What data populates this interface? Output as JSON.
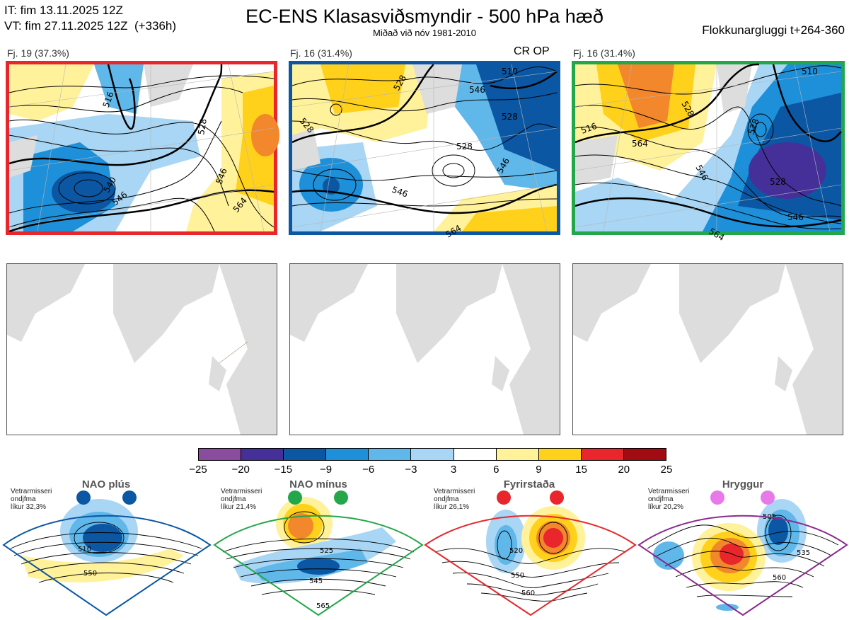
{
  "header": {
    "init_time": "IT: fim 13.11.2025 12Z",
    "valid_time": "VT: fim 27.11.2025 12Z  (+336h)",
    "title": "EC-ENS Klasasviðsmyndir - 500 hPa hæð",
    "subtitle": "Miðað við nóv 1981-2010",
    "window": "Flokkunargluggi t+264-360"
  },
  "clusters": [
    {
      "label": "Fj. 19 (37.3%)",
      "border_color": "#e8262b",
      "tag": "",
      "contour_labels": [
        "516",
        "528",
        "546",
        "546",
        "564",
        "540"
      ]
    },
    {
      "label": "Fj. 16 (31.4%)",
      "border_color": "#0b57a4",
      "tag": "CR OP",
      "contour_labels": [
        "528",
        "510",
        "528",
        "546",
        "528",
        "546",
        "528",
        "564",
        "546"
      ]
    },
    {
      "label": "Fj. 16 (31.4%)",
      "border_color": "#23a74a",
      "tag": "",
      "contour_labels": [
        "510",
        "528",
        "546",
        "528",
        "528",
        "516",
        "564",
        "546",
        "564"
      ]
    }
  ],
  "colorbar": {
    "ticks": [
      "−25",
      "−20",
      "−15",
      "−9",
      "−6",
      "−3",
      "3",
      "6",
      "9",
      "15",
      "20",
      "25"
    ],
    "colors": [
      "#8a4c9e",
      "#45309a",
      "#0b57a4",
      "#1e8fd9",
      "#5fb7ea",
      "#a8d6f4",
      "#ffffff",
      "#fff29a",
      "#ffd11a",
      "#f2872c",
      "#e8262b",
      "#a00c12"
    ]
  },
  "regimes": [
    {
      "name": "NAO plús",
      "note": [
        "Vetrarmisseri",
        "ondjfma",
        "líkur 32,3%"
      ],
      "dot_color": "#0b57a4",
      "border_color": "#0b57a4",
      "contour_labels": [
        "510",
        "550"
      ]
    },
    {
      "name": "NAO mínus",
      "note": [
        "Vetrarmisseri",
        "ondjfma",
        "líkur 21,4%"
      ],
      "dot_color": "#23a74a",
      "border_color": "#23a74a",
      "contour_labels": [
        "525",
        "545",
        "565"
      ]
    },
    {
      "name": "Fyrirstaða",
      "note": [
        "Vetrarmisseri",
        "ondjfma",
        "líkur 26,1%"
      ],
      "dot_color": "#e8262b",
      "border_color": "#e8262b",
      "contour_labels": [
        "520",
        "550",
        "560"
      ]
    },
    {
      "name": "Hryggur",
      "note": [
        "Vetrarmisseri",
        "ondjfma",
        "líkur 20,2%"
      ],
      "dot_color": "#e77ae8",
      "border_color": "#8b2a8e",
      "contour_labels": [
        "505",
        "535",
        "560"
      ]
    }
  ]
}
